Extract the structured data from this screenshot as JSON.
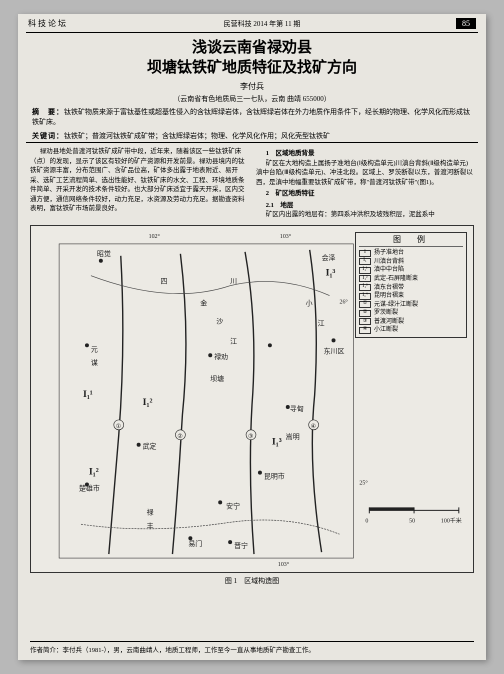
{
  "header": {
    "left": "科技论坛",
    "mid": "民营科技 2014 年第 11 期",
    "page": "85"
  },
  "title": {
    "line1": "浅谈云南省禄劝县",
    "line2": "坝塘钛铁矿地质特征及找矿方向"
  },
  "author": "李付兵",
  "affiliation": "（云南省有色地质局三一七队，云南 曲靖 655000）",
  "abstract": {
    "label": "摘　要：",
    "text": "钛铁矿物质来源于富钛基性或超基性侵入的含钛辉绿岩体，含钛辉绿岩体在外力地质作用条件下，经长期的物理、化学风化而形成钛铁矿床。"
  },
  "keywords": {
    "label": "关键词：",
    "text": "钛铁矿；普渡河钛铁矿成矿带；含钛辉绿岩体；物理、化学风化作用；风化壳型钛铁矿"
  },
  "leftcol": {
    "p1": "禄劝县地处普渡河钛铁矿成矿带中段，近年来，随着该区一些钛铁矿床（点）的发现，显示了该区有较好的矿产资源和开发前景。禄劝县境内的钛铁矿资源丰富，分布范围广、含矿品位高，矿体多出露于地表附近、易开采、选矿工艺流程简单、选出性能好、钛铁矿床的水文、工程、环境地质条件简单、开采开发的技术条件较好。也大部分矿床适宜于露天开采，区内交通方便，通信网络条件较好，动力充足，水资源及劳动力充足。据勘查资料表明，富钛铁矿市场前景良好。",
    "s1": "1　区域地质背景",
    "p2": "矿区在大地构造上属扬子准地台(Ⅰ级构造单元)川滇台背斜(Ⅱ级构造单元)滇中台陷(Ⅲ级构造单元)、冲洼北段。区域上、罗茨断裂以东，普渡河断裂以西，是滇中地幅重要钛铁矿成矿带，称\"普渡河钛铁矿带\"(图1)。",
    "s2": "2　矿区地质特征",
    "s21": "2.1　地层",
    "p3": "矿区内出露的地层有：第四系冲洪积及坡残积层，泥盆系中"
  },
  "legend": {
    "title": "图　例",
    "items": [
      {
        "sym": "I",
        "txt": "扬子准地台"
      },
      {
        "sym": "I₁",
        "txt": "川滇台背斜"
      },
      {
        "sym": "I₁¹",
        "txt": "滇中中台陷"
      },
      {
        "sym": "I₁²",
        "txt": "武定-石屏隆断束"
      },
      {
        "sym": "I₁³",
        "txt": "滇东台褶带"
      },
      {
        "sym": "I₁⁴",
        "txt": "昆明台褶束"
      },
      {
        "sym": "①",
        "txt": "元谋-绿汁江断裂"
      },
      {
        "sym": "②",
        "txt": "罗茨断裂"
      },
      {
        "sym": "③",
        "txt": "普渡河断裂"
      },
      {
        "sym": "④",
        "txt": "小江断裂"
      }
    ]
  },
  "map": {
    "places": {
      "huize": "会泽",
      "zhaojue": "昭觉",
      "sichuan": "四",
      "chuan": "川",
      "luliang": "禄劝",
      "jinsha": "金",
      "sha": "沙",
      "jiang": "江",
      "xiao": "小",
      "jiang2": "江",
      "dongchuan": "东川区",
      "xundian": "寻甸",
      "wuding": "武定",
      "yuanmou": "元",
      "mou": "谋",
      "luquan": "禄劝",
      "songming": "嵩明",
      "kunming": "昆明市",
      "chuxiong": "楚雄市",
      "anning": "安宁",
      "jinning": "晋宁",
      "lufeng": "禄",
      "feng": "丰",
      "yimen": "易门",
      "mengzhe": "勐",
      "batang": "坝塘"
    },
    "zones": {
      "z1": "I₁¹",
      "z2": "I₁²",
      "z3": "I₁²",
      "z4": "I₁³",
      "z5": "I₁³"
    },
    "coords": {
      "c102": "102°",
      "c103t": "103°",
      "c103b": "103°",
      "c26": "26°",
      "c25": "25°"
    },
    "scale": {
      "a": "0",
      "b": "50",
      "c": "100千米"
    }
  },
  "figcaption": "图 1　区域构造图",
  "footer": "作者简介：李付兵（1981-），男，云南曲靖人，地质工程师，工作至今一直从事地质矿产勘查工作。"
}
